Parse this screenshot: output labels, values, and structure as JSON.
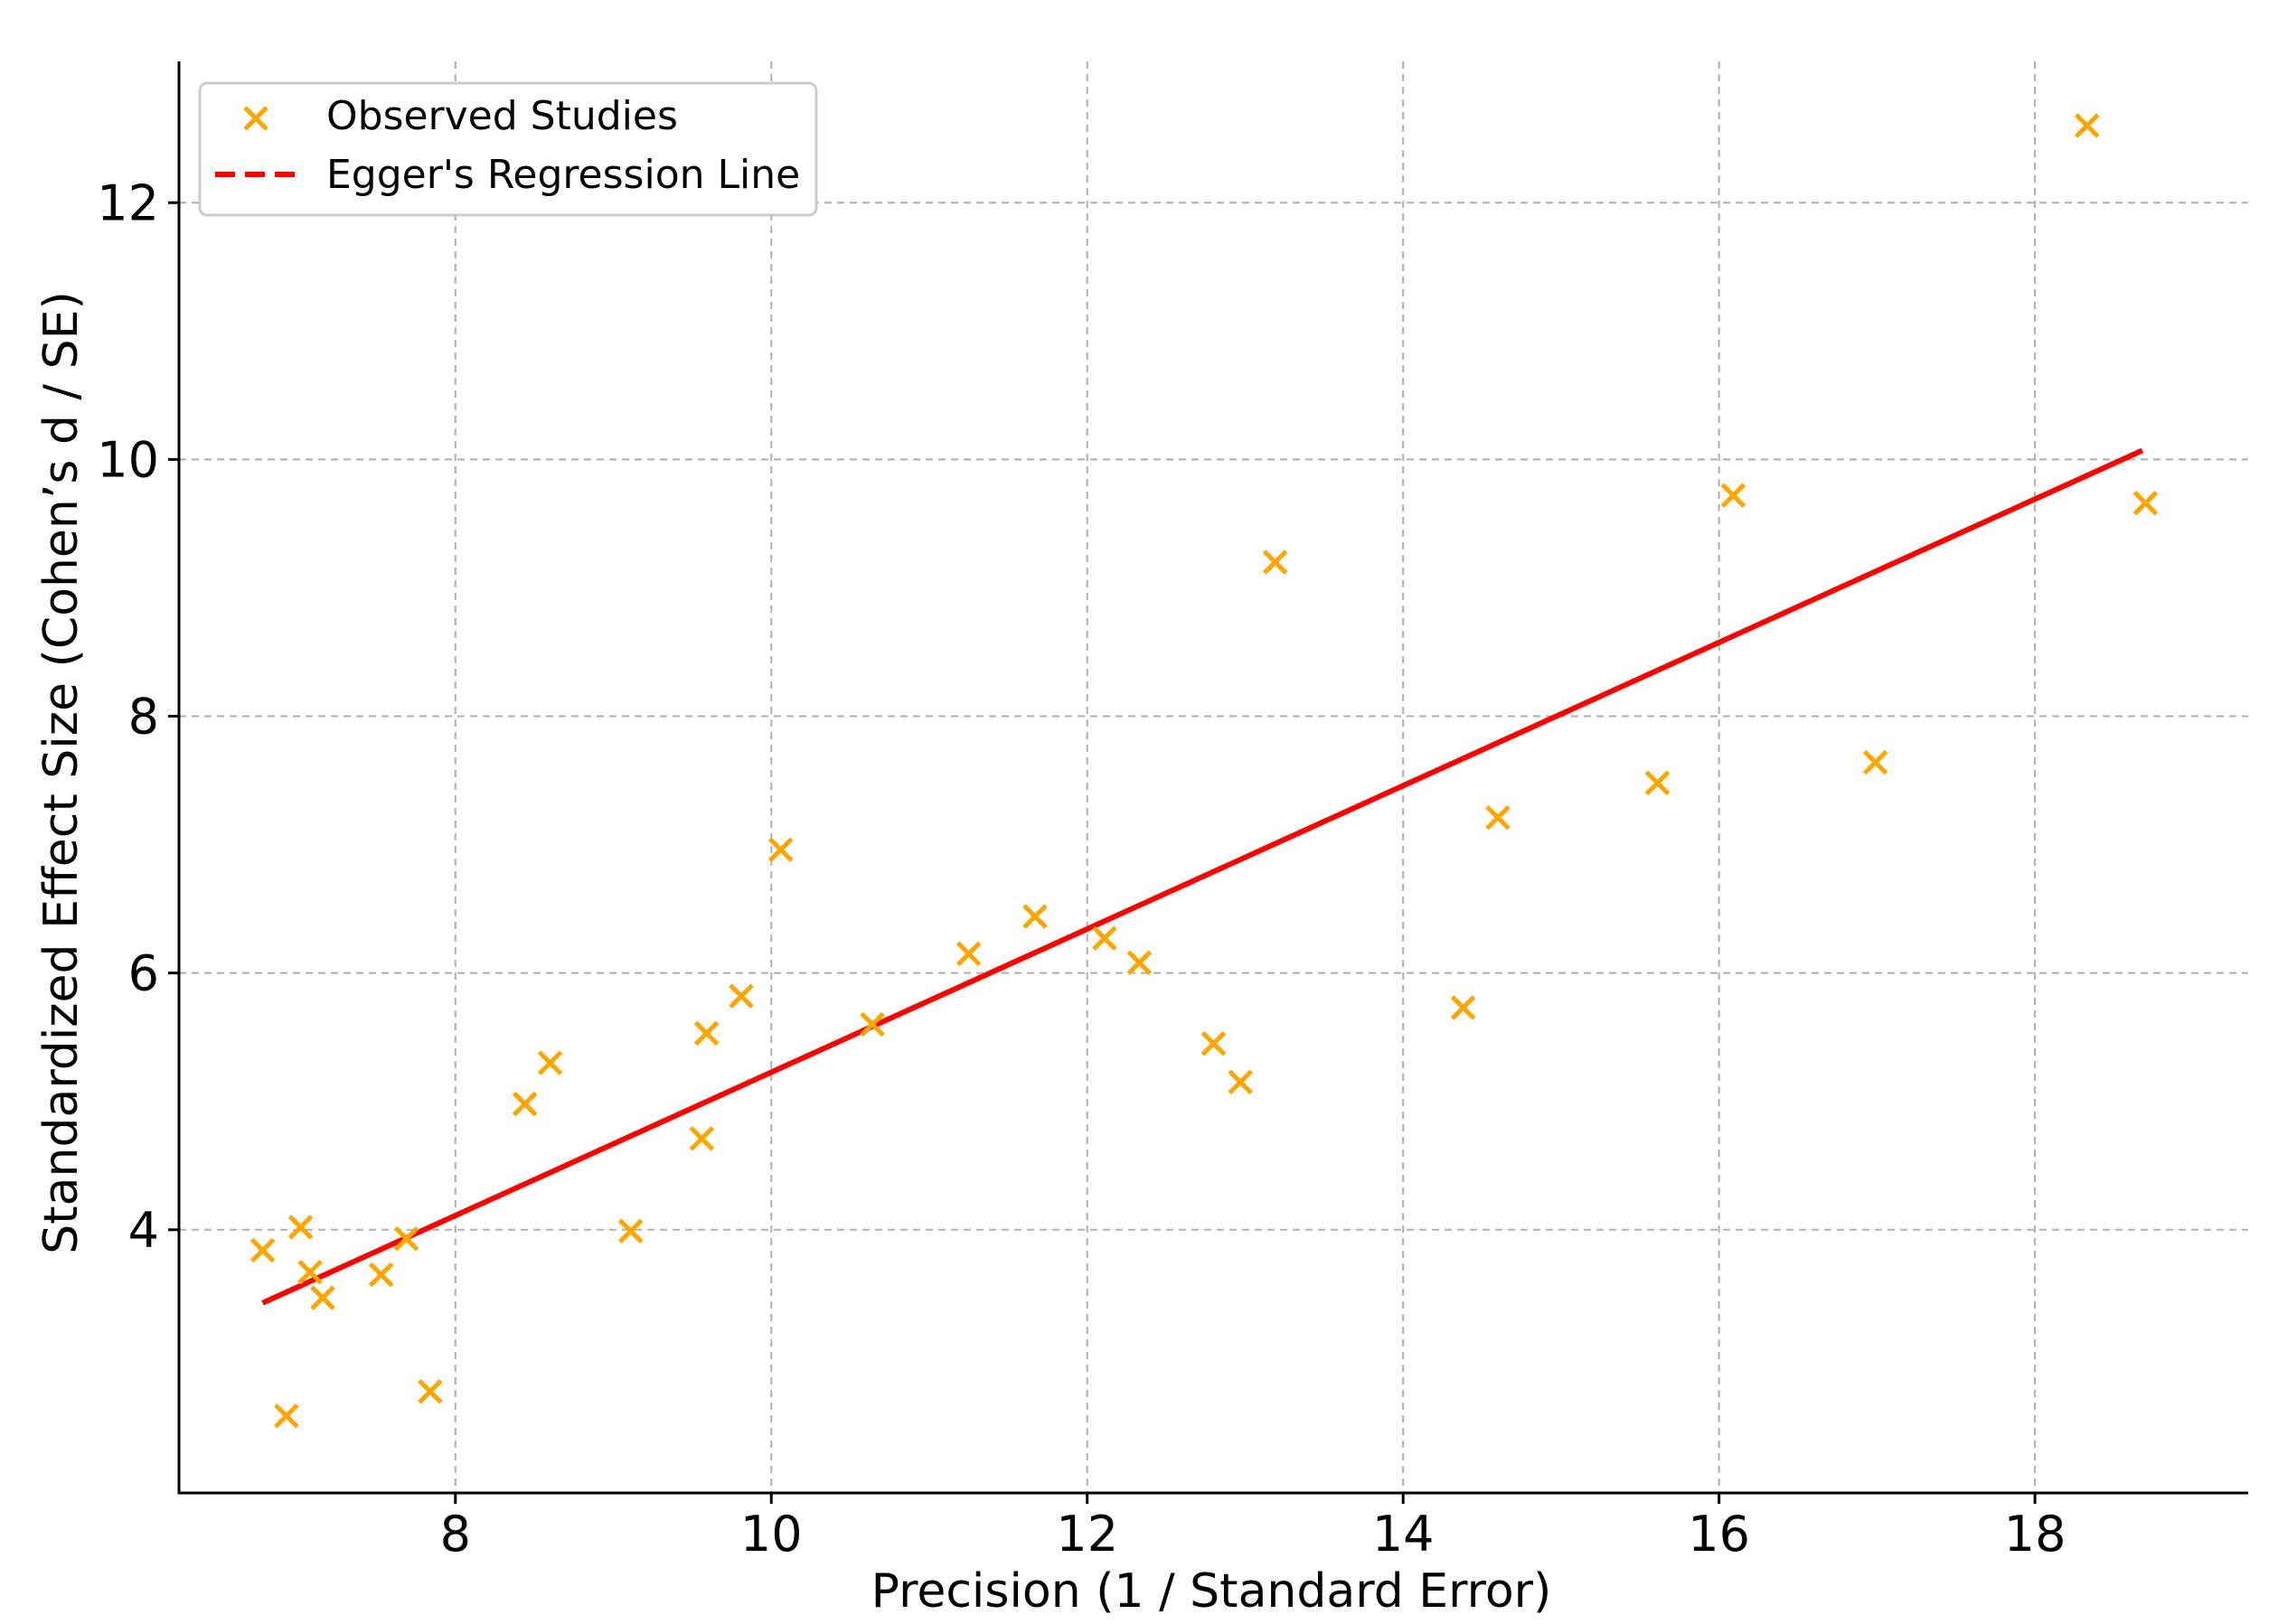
{
  "chart_data": {
    "type": "scatter",
    "title": "",
    "xlabel": "Precision (1 / Standard Error)",
    "ylabel": "Standardized Effect Size (Cohen’s d / SE)",
    "xlim": [
      6.25,
      19.35
    ],
    "ylim": [
      1.95,
      13.1
    ],
    "xticks": [
      8,
      10,
      12,
      14,
      16,
      18
    ],
    "yticks": [
      4,
      6,
      8,
      10,
      12
    ],
    "grid": true,
    "legend_position": "top-left",
    "series": [
      {
        "name": "Observed Studies",
        "kind": "scatter",
        "marker": "x",
        "color": "#FFA500",
        "points": [
          [
            6.78,
            3.84
          ],
          [
            7.02,
            4.02
          ],
          [
            7.08,
            3.67
          ],
          [
            7.16,
            3.47
          ],
          [
            6.93,
            2.55
          ],
          [
            7.53,
            3.65
          ],
          [
            7.69,
            3.93
          ],
          [
            7.84,
            2.74
          ],
          [
            8.44,
            4.98
          ],
          [
            8.6,
            5.3
          ],
          [
            9.11,
            3.99
          ],
          [
            9.56,
            4.71
          ],
          [
            9.59,
            5.53
          ],
          [
            9.81,
            5.82
          ],
          [
            10.06,
            6.96
          ],
          [
            10.64,
            5.6
          ],
          [
            11.25,
            6.15
          ],
          [
            11.67,
            6.44
          ],
          [
            12.11,
            6.27
          ],
          [
            12.33,
            6.08
          ],
          [
            12.8,
            5.45
          ],
          [
            12.97,
            5.15
          ],
          [
            13.19,
            9.2
          ],
          [
            14.38,
            5.73
          ],
          [
            14.6,
            7.21
          ],
          [
            15.61,
            7.48
          ],
          [
            16.09,
            9.72
          ],
          [
            16.99,
            7.64
          ],
          [
            18.33,
            12.6
          ],
          [
            18.7,
            9.66
          ]
        ]
      },
      {
        "name": "Egger's Regression Line",
        "kind": "line",
        "color": "#FF0000",
        "points": [
          [
            6.78,
            3.43
          ],
          [
            18.68,
            10.07
          ]
        ]
      }
    ]
  }
}
